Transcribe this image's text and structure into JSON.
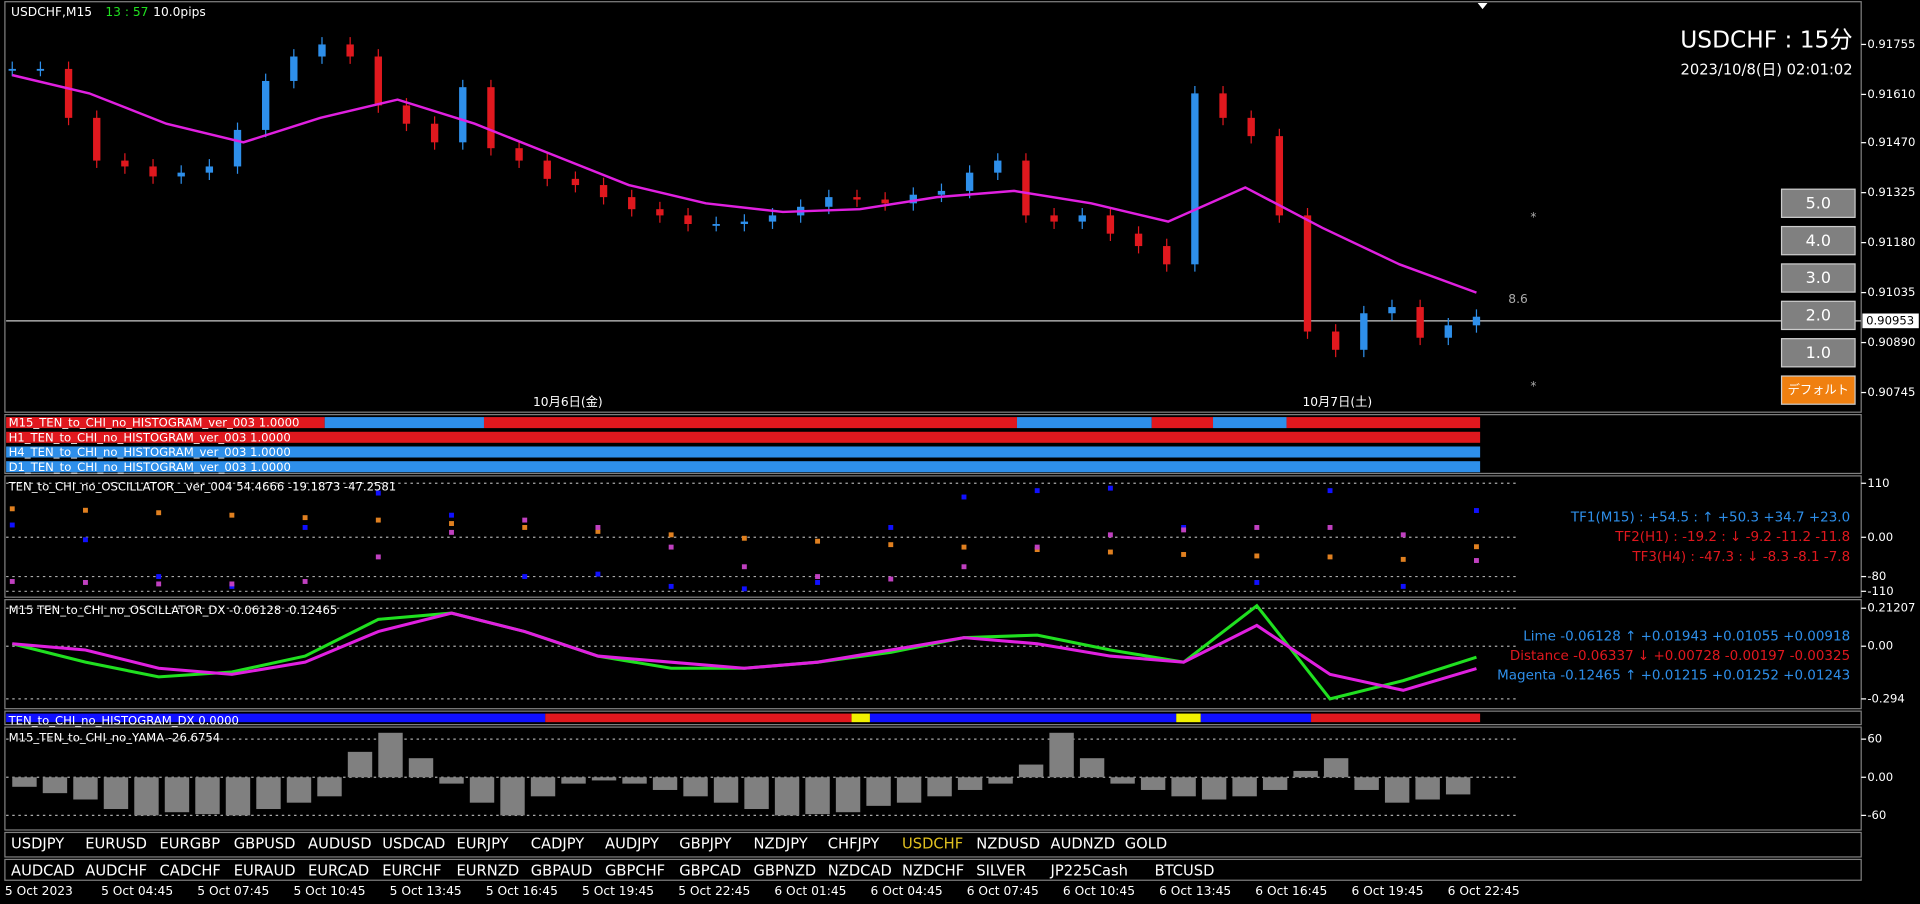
{
  "header": {
    "symbol": "USDCHF,M15",
    "timer": "13 : 57",
    "spread": "10.0pips"
  },
  "info": {
    "title": "USDCHF : 15分",
    "datetime": "2023/10/8(日) 02:01:02"
  },
  "price_panel": {
    "type": "candlestick",
    "up_color": "#2e8fea",
    "down_color": "#e0181e",
    "ma_color": "#e020e0",
    "closes": [
      0.91684,
      0.91684,
      0.91542,
      0.91418,
      0.91401,
      0.91372,
      0.91383,
      0.91401,
      0.91507,
      0.91649,
      0.9172,
      0.91755,
      0.9172,
      0.91578,
      0.91525,
      0.91471,
      0.91631,
      0.91454,
      0.91418,
      0.91365,
      0.91347,
      0.91312,
      0.91277,
      0.91259,
      0.91234,
      0.91234,
      0.91241,
      0.91259,
      0.91284,
      0.91312,
      0.91305,
      0.91294,
      0.91319,
      0.9133,
      0.91383,
      0.91418,
      0.91259,
      0.91241,
      0.91259,
      0.91206,
      0.9117,
      0.91117,
      0.91613,
      0.91542,
      0.91489,
      0.91259,
      0.90922,
      0.90869,
      0.90975,
      0.90993,
      0.90904,
      0.9094,
      0.90965
    ],
    "ma": [
      0.91666,
      0.91613,
      0.91525,
      0.91471,
      0.91542,
      0.91595,
      0.91525,
      0.91436,
      0.91347,
      0.91294,
      0.91269,
      0.91277,
      0.91312,
      0.9133,
      0.91294,
      0.91241,
      0.9134,
      0.91223,
      0.91117,
      0.91035
    ],
    "ylim": [
      0.90688,
      0.91879
    ],
    "yticks": [
      0.91755,
      {
        "value": 0.9161,
        "label": "0.91610"
      },
      {
        "value": 0.9147,
        "label": "0.91470"
      },
      0.91325,
      {
        "value": 0.9118,
        "label": "0.91180"
      },
      0.91035,
      {
        "value": 0.9089,
        "label": "0.90890"
      },
      0.90745
    ],
    "current": 0.90953,
    "day_labels": [
      "10月6日(金)",
      "10月7日(土)"
    ],
    "level_label": "8.6"
  },
  "buttons": [
    "5.0",
    "4.0",
    "3.0",
    "2.0",
    "1.0",
    "デフォルト"
  ],
  "histogram_labels": [
    "M15_TEN_to_CHI_no_HISTOGRAM_ver_003 1.0000",
    "H1_TEN_to_CHI_no_HISTOGRAM_ver_003 1.0000",
    "H4_TEN_to_CHI_no_HISTOGRAM_ver_003 1.0000",
    "D1_TEN_to_CHI_no_HISTOGRAM_ver_003 1.0000"
  ],
  "oscillator": {
    "type": "dots",
    "label": "TEN_to_CHI_no_OSCILLATOR__ver_004 54.4666 -19.1873 -47.2581",
    "ylim": [
      -122,
      125
    ],
    "grid": true,
    "yticks": [
      110,
      {
        "value": 0,
        "label": "0.00"
      },
      -80,
      -110
    ],
    "series": [
      {
        "color": "#1010ff",
        "values": [
          25,
          -5,
          -80,
          -100,
          20,
          90,
          45,
          -80,
          -75,
          -100,
          -105,
          -92,
          20,
          82,
          95,
          100,
          20,
          -92,
          95,
          -100,
          54.5
        ]
      },
      {
        "color": "#e08020",
        "values": [
          58,
          55,
          50,
          45,
          40,
          35,
          28,
          20,
          12,
          5,
          -2,
          -8,
          -15,
          -20,
          -25,
          -30,
          -35,
          -38,
          -40,
          -45,
          -19.2
        ]
      },
      {
        "color": "#c040c0",
        "values": [
          -90,
          -92,
          -95,
          -95,
          -90,
          -40,
          10,
          35,
          20,
          -20,
          -60,
          -80,
          -85,
          -60,
          -20,
          5,
          15,
          20,
          20,
          5,
          -47.3
        ]
      }
    ],
    "readouts": [
      {
        "text": "TF1(M15) : +54.5 : ↑ +50.3 +34.7 +23.0",
        "color": "#2e8fea"
      },
      {
        "text": "TF2(H1) : -19.2 : ↓ -9.2 -11.2 -11.8",
        "color": "#e0181e"
      },
      {
        "text": "TF3(H4) : -47.3 : ↓ -8.3 -8.1 -7.8",
        "color": "#e0181e"
      }
    ]
  },
  "dx": {
    "type": "line",
    "label": "M15 TEN_to_CHI_no_OSCILLATOR_DX -0.06128 -0.12465",
    "ylim": [
      -0.3487,
      0.26
    ],
    "grid": true,
    "yticks": [
      0.21207,
      {
        "value": 0,
        "label": "0.00"
      },
      -0.294
    ],
    "series": [
      {
        "color": "#20e020",
        "values": [
          0.014,
          -0.089,
          -0.171,
          -0.144,
          -0.055,
          0.15,
          0.185,
          0.082,
          -0.055,
          -0.123,
          -0.123,
          -0.089,
          -0.034,
          0.048,
          0.062,
          -0.021,
          -0.089,
          0.226,
          -0.294,
          -0.192,
          -0.06128
        ]
      },
      {
        "color": "#e020e0",
        "values": [
          0.014,
          -0.021,
          -0.123,
          -0.157,
          -0.089,
          0.082,
          0.185,
          0.082,
          -0.055,
          -0.089,
          -0.123,
          -0.089,
          -0.021,
          0.048,
          0.014,
          -0.055,
          -0.089,
          0.116,
          -0.157,
          -0.246,
          -0.12465
        ]
      }
    ],
    "readouts": [
      {
        "text": "Lime -0.06128 ↑ +0.01943 +0.01055 +0.00918",
        "color": "#2e8fea"
      },
      {
        "text": "Distance -0.06337 ↓ +0.00728 -0.00197 -0.00325",
        "color": "#e0181e"
      },
      {
        "text": "Magenta -0.12465 ↑ +0.01215 +0.01252 +0.01243",
        "color": "#2e8fea"
      }
    ]
  },
  "dx_hist_label": "TEN_to_CHI_no_HISTOGRAM_DX 0.0000",
  "yama": {
    "type": "bar",
    "label": "M15_TEN_to_CHI_no_YAMA -26.6754",
    "color": "#808080",
    "ylim": [
      -83,
      79
    ],
    "grid": true,
    "yticks": [
      60,
      {
        "value": 0,
        "label": "0.00"
      },
      -60
    ],
    "values": [
      -15,
      -25,
      -35,
      -50,
      -60,
      -55,
      -58,
      -60,
      -50,
      -40,
      -30,
      40,
      70,
      30,
      -10,
      -40,
      -60,
      -30,
      -10,
      -5,
      -10,
      -20,
      -30,
      -40,
      -50,
      -60,
      -58,
      -55,
      -45,
      -40,
      -30,
      -20,
      -10,
      20,
      70,
      30,
      -10,
      -20,
      -30,
      -35,
      -30,
      -20,
      10,
      30,
      -20,
      -40,
      -35,
      -27
    ]
  },
  "symbols": {
    "row1": [
      "USDJPY",
      "EURUSD",
      "EURGBP",
      "GBPUSD",
      "AUDUSD",
      "USDCAD",
      "EURJPY",
      "CADJPY",
      "AUDJPY",
      "GBPJPY",
      "NZDJPY",
      "CHFJPY",
      "USDCHF",
      "NZDUSD",
      "AUDNZD",
      "GOLD"
    ],
    "row2": [
      "AUDCAD",
      "AUDCHF",
      "CADCHF",
      "EURAUD",
      "EURCAD",
      "EURCHF",
      "EURNZD",
      "GBPAUD",
      "GBPCHF",
      "GBPCAD",
      "GBPNZD",
      "NZDCAD",
      "NZDCHF",
      "SILVER",
      "JP225Cash",
      "BTCUSD"
    ],
    "active": 12
  },
  "x_labels": [
    "5 Oct 2023",
    "5 Oct 04:45",
    "5 Oct 07:45",
    "5 Oct 10:45",
    "5 Oct 13:45",
    "5 Oct 16:45",
    "5 Oct 19:45",
    "5 Oct 22:45",
    "6 Oct 01:45",
    "6 Oct 04:45",
    "6 Oct 07:45",
    "6 Oct 10:45",
    "6 Oct 13:45",
    "6 Oct 16:45",
    "6 Oct 19:45",
    "6 Oct 22:45"
  ]
}
